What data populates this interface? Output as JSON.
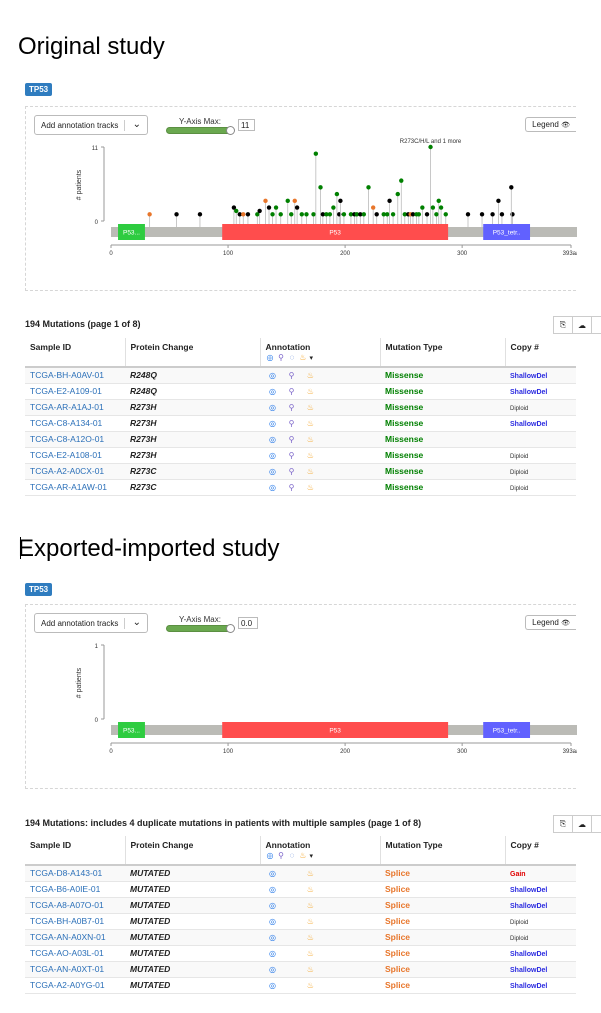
{
  "sections": [
    {
      "heading": "Original study",
      "gene": "TP53",
      "annotation_select": "Add annotation tracks",
      "ymax_label": "Y-Axis Max:",
      "ymax_value": "11",
      "ymax_fraction": 1.0,
      "legend": "Legend",
      "chart_data": {
        "type": "lollipop",
        "ylabel": "# patients",
        "yticks": [
          "11",
          "0"
        ],
        "ylim": [
          0,
          11
        ],
        "xlim": [
          0,
          393
        ],
        "xticks": [
          {
            "value": 0,
            "label": "0"
          },
          {
            "value": 100,
            "label": "100"
          },
          {
            "value": 200,
            "label": "200"
          },
          {
            "value": 300,
            "label": "300"
          },
          {
            "value": 393,
            "label": "393aa"
          }
        ],
        "domains": [
          {
            "label": "P53...",
            "start": 6,
            "end": 29,
            "color": "#2ecc40"
          },
          {
            "label": "P53",
            "start": 95,
            "end": 288,
            "color": "#ff4d4d"
          },
          {
            "label": "P53_tetr..",
            "start": 318,
            "end": 358,
            "color": "#6161ff"
          }
        ],
        "annotation": "R273C/H/L and 1 more",
        "lollipops": [
          {
            "pos": 33,
            "count": 1,
            "color": "#e8762b"
          },
          {
            "pos": 56,
            "count": 1,
            "color": "#000000"
          },
          {
            "pos": 76,
            "count": 1,
            "color": "#000000"
          },
          {
            "pos": 105,
            "count": 2,
            "color": "#000000"
          },
          {
            "pos": 107,
            "count": 1.5,
            "color": "#008000"
          },
          {
            "pos": 110,
            "count": 1,
            "color": "#000000"
          },
          {
            "pos": 113,
            "count": 1,
            "color": "#e8762b"
          },
          {
            "pos": 117,
            "count": 1,
            "color": "#000000"
          },
          {
            "pos": 125,
            "count": 1,
            "color": "#008000"
          },
          {
            "pos": 127,
            "count": 1.5,
            "color": "#000000"
          },
          {
            "pos": 132,
            "count": 3,
            "color": "#e8762b"
          },
          {
            "pos": 135,
            "count": 2,
            "color": "#000000"
          },
          {
            "pos": 138,
            "count": 1,
            "color": "#008000"
          },
          {
            "pos": 141,
            "count": 2,
            "color": "#008000"
          },
          {
            "pos": 145,
            "count": 1,
            "color": "#008000"
          },
          {
            "pos": 151,
            "count": 3,
            "color": "#008000"
          },
          {
            "pos": 154,
            "count": 1,
            "color": "#008000"
          },
          {
            "pos": 157,
            "count": 3,
            "color": "#e8762b"
          },
          {
            "pos": 159,
            "count": 2,
            "color": "#000000"
          },
          {
            "pos": 163,
            "count": 1,
            "color": "#008000"
          },
          {
            "pos": 167,
            "count": 1,
            "color": "#008000"
          },
          {
            "pos": 173,
            "count": 1,
            "color": "#008000"
          },
          {
            "pos": 175,
            "count": 10,
            "color": "#008000"
          },
          {
            "pos": 179,
            "count": 5,
            "color": "#008000"
          },
          {
            "pos": 181,
            "count": 1,
            "color": "#000000"
          },
          {
            "pos": 184,
            "count": 1,
            "color": "#008000"
          },
          {
            "pos": 187,
            "count": 1,
            "color": "#008000"
          },
          {
            "pos": 190,
            "count": 2,
            "color": "#008000"
          },
          {
            "pos": 193,
            "count": 4,
            "color": "#008000"
          },
          {
            "pos": 195,
            "count": 1,
            "color": "#000000"
          },
          {
            "pos": 196,
            "count": 3,
            "color": "#000000"
          },
          {
            "pos": 199,
            "count": 1,
            "color": "#008000"
          },
          {
            "pos": 205,
            "count": 1,
            "color": "#008000"
          },
          {
            "pos": 208,
            "count": 1,
            "color": "#000000"
          },
          {
            "pos": 210,
            "count": 1,
            "color": "#008000"
          },
          {
            "pos": 213,
            "count": 1,
            "color": "#000000"
          },
          {
            "pos": 216,
            "count": 1,
            "color": "#008000"
          },
          {
            "pos": 220,
            "count": 5,
            "color": "#008000"
          },
          {
            "pos": 224,
            "count": 2,
            "color": "#e8762b"
          },
          {
            "pos": 227,
            "count": 1,
            "color": "#000000"
          },
          {
            "pos": 233,
            "count": 1,
            "color": "#008000"
          },
          {
            "pos": 236,
            "count": 1,
            "color": "#008000"
          },
          {
            "pos": 238,
            "count": 3,
            "color": "#000000"
          },
          {
            "pos": 241,
            "count": 1,
            "color": "#008000"
          },
          {
            "pos": 245,
            "count": 4,
            "color": "#008000"
          },
          {
            "pos": 248,
            "count": 6,
            "color": "#008000"
          },
          {
            "pos": 251,
            "count": 1,
            "color": "#008000"
          },
          {
            "pos": 254,
            "count": 1,
            "color": "#000000"
          },
          {
            "pos": 256,
            "count": 1,
            "color": "#e8762b"
          },
          {
            "pos": 258,
            "count": 1,
            "color": "#000000"
          },
          {
            "pos": 261,
            "count": 1,
            "color": "#008000"
          },
          {
            "pos": 263,
            "count": 1,
            "color": "#008000"
          },
          {
            "pos": 266,
            "count": 2,
            "color": "#008000"
          },
          {
            "pos": 270,
            "count": 1,
            "color": "#000000"
          },
          {
            "pos": 273,
            "count": 11,
            "color": "#008000"
          },
          {
            "pos": 275,
            "count": 2,
            "color": "#008000"
          },
          {
            "pos": 278,
            "count": 1,
            "color": "#008000"
          },
          {
            "pos": 280,
            "count": 3,
            "color": "#008000"
          },
          {
            "pos": 282,
            "count": 2,
            "color": "#008000"
          },
          {
            "pos": 286,
            "count": 1,
            "color": "#008000"
          },
          {
            "pos": 305,
            "count": 1,
            "color": "#000000"
          },
          {
            "pos": 317,
            "count": 1,
            "color": "#000000"
          },
          {
            "pos": 326,
            "count": 1,
            "color": "#000000"
          },
          {
            "pos": 331,
            "count": 3,
            "color": "#000000"
          },
          {
            "pos": 334,
            "count": 1,
            "color": "#000000"
          },
          {
            "pos": 343,
            "count": 1,
            "color": "#000000"
          },
          {
            "pos": 342,
            "count": 5,
            "color": "#000000"
          }
        ]
      },
      "table_title": "194 Mutations (page 1 of 8)",
      "columns": [
        "Sample ID",
        "Protein Change",
        "Annotation",
        "Mutation Type",
        "Copy #"
      ],
      "rows": [
        {
          "sample": "TCGA-BH-A0AV-01",
          "protein": "R248Q",
          "icons": [
            "oncokb",
            "civic",
            "hot"
          ],
          "type": "Missense",
          "type_class": "missense",
          "cna": "ShallowDel"
        },
        {
          "sample": "TCGA-E2-A109-01",
          "protein": "R248Q",
          "icons": [
            "oncokb",
            "civic",
            "hot"
          ],
          "type": "Missense",
          "type_class": "missense",
          "cna": "ShallowDel"
        },
        {
          "sample": "TCGA-AR-A1AJ-01",
          "protein": "R273H",
          "icons": [
            "oncokb",
            "civic",
            "hot"
          ],
          "type": "Missense",
          "type_class": "missense",
          "cna": "Diploid"
        },
        {
          "sample": "TCGA-C8-A134-01",
          "protein": "R273H",
          "icons": [
            "oncokb",
            "civic",
            "hot"
          ],
          "type": "Missense",
          "type_class": "missense",
          "cna": "ShallowDel"
        },
        {
          "sample": "TCGA-C8-A12O-01",
          "protein": "R273H",
          "icons": [
            "oncokb",
            "civic",
            "hot"
          ],
          "type": "Missense",
          "type_class": "missense",
          "cna": ""
        },
        {
          "sample": "TCGA-E2-A108-01",
          "protein": "R273H",
          "icons": [
            "oncokb",
            "civic",
            "hot"
          ],
          "type": "Missense",
          "type_class": "missense",
          "cna": "Diploid"
        },
        {
          "sample": "TCGA-A2-A0CX-01",
          "protein": "R273C",
          "icons": [
            "oncokb",
            "civic",
            "hot"
          ],
          "type": "Missense",
          "type_class": "missense",
          "cna": "Diploid"
        },
        {
          "sample": "TCGA-AR-A1AW-01",
          "protein": "R273C",
          "icons": [
            "oncokb",
            "civic",
            "hot"
          ],
          "type": "Missense",
          "type_class": "missense",
          "cna": "Diploid"
        }
      ]
    },
    {
      "heading": "Exported-imported study",
      "gene": "TP53",
      "annotation_select": "Add annotation tracks",
      "ymax_label": "Y-Axis Max:",
      "ymax_value": "0.0",
      "ymax_fraction": 1.0,
      "legend": "Legend",
      "chart_data": {
        "type": "lollipop",
        "ylabel": "# patients",
        "yticks": [
          "1",
          "0"
        ],
        "ylim": [
          0,
          1
        ],
        "xlim": [
          0,
          393
        ],
        "xticks": [
          {
            "value": 0,
            "label": "0"
          },
          {
            "value": 100,
            "label": "100"
          },
          {
            "value": 200,
            "label": "200"
          },
          {
            "value": 300,
            "label": "300"
          },
          {
            "value": 393,
            "label": "393aa"
          }
        ],
        "domains": [
          {
            "label": "P53...",
            "start": 6,
            "end": 29,
            "color": "#2ecc40"
          },
          {
            "label": "P53",
            "start": 95,
            "end": 288,
            "color": "#ff4d4d"
          },
          {
            "label": "P53_tetr..",
            "start": 318,
            "end": 358,
            "color": "#6161ff"
          }
        ],
        "annotation": "",
        "lollipops": []
      },
      "table_title": "194 Mutations: includes 4 duplicate mutations in patients with multiple samples (page 1 of 8)",
      "columns": [
        "Sample ID",
        "Protein Change",
        "Annotation",
        "Mutation Type",
        "Copy #"
      ],
      "rows": [
        {
          "sample": "TCGA-D8-A143-01",
          "protein": "MUTATED",
          "icons": [
            "oncokb",
            "hot"
          ],
          "type": "Splice",
          "type_class": "splice",
          "cna": "Gain"
        },
        {
          "sample": "TCGA-B6-A0IE-01",
          "protein": "MUTATED",
          "icons": [
            "oncokb",
            "hot"
          ],
          "type": "Splice",
          "type_class": "splice",
          "cna": "ShallowDel"
        },
        {
          "sample": "TCGA-A8-A07O-01",
          "protein": "MUTATED",
          "icons": [
            "oncokb",
            "hot"
          ],
          "type": "Splice",
          "type_class": "splice",
          "cna": "ShallowDel"
        },
        {
          "sample": "TCGA-BH-A0B7-01",
          "protein": "MUTATED",
          "icons": [
            "oncokb",
            "hot"
          ],
          "type": "Splice",
          "type_class": "splice",
          "cna": "Diploid"
        },
        {
          "sample": "TCGA-AN-A0XN-01",
          "protein": "MUTATED",
          "icons": [
            "oncokb",
            "hot"
          ],
          "type": "Splice",
          "type_class": "splice",
          "cna": "Diploid"
        },
        {
          "sample": "TCGA-AO-A03L-01",
          "protein": "MUTATED",
          "icons": [
            "oncokb",
            "hot"
          ],
          "type": "Splice",
          "type_class": "splice",
          "cna": "ShallowDel"
        },
        {
          "sample": "TCGA-AN-A0XT-01",
          "protein": "MUTATED",
          "icons": [
            "oncokb",
            "hot"
          ],
          "type": "Splice",
          "type_class": "splice",
          "cna": "ShallowDel"
        },
        {
          "sample": "TCGA-A2-A0YG-01",
          "protein": "MUTATED",
          "icons": [
            "oncokb",
            "hot"
          ],
          "type": "Splice",
          "type_class": "splice",
          "cna": "ShallowDel"
        }
      ]
    }
  ],
  "icon_glyphs": {
    "oncokb": "◎",
    "civic": "⚲",
    "myvariant": "◌",
    "hot": "♨",
    "sort": "▾",
    "copy": "⎘",
    "download": "☁",
    "eye": "👁",
    "chevron": "⌄"
  },
  "header_icons": [
    "oncokb",
    "civic",
    "myvariant",
    "hot"
  ]
}
